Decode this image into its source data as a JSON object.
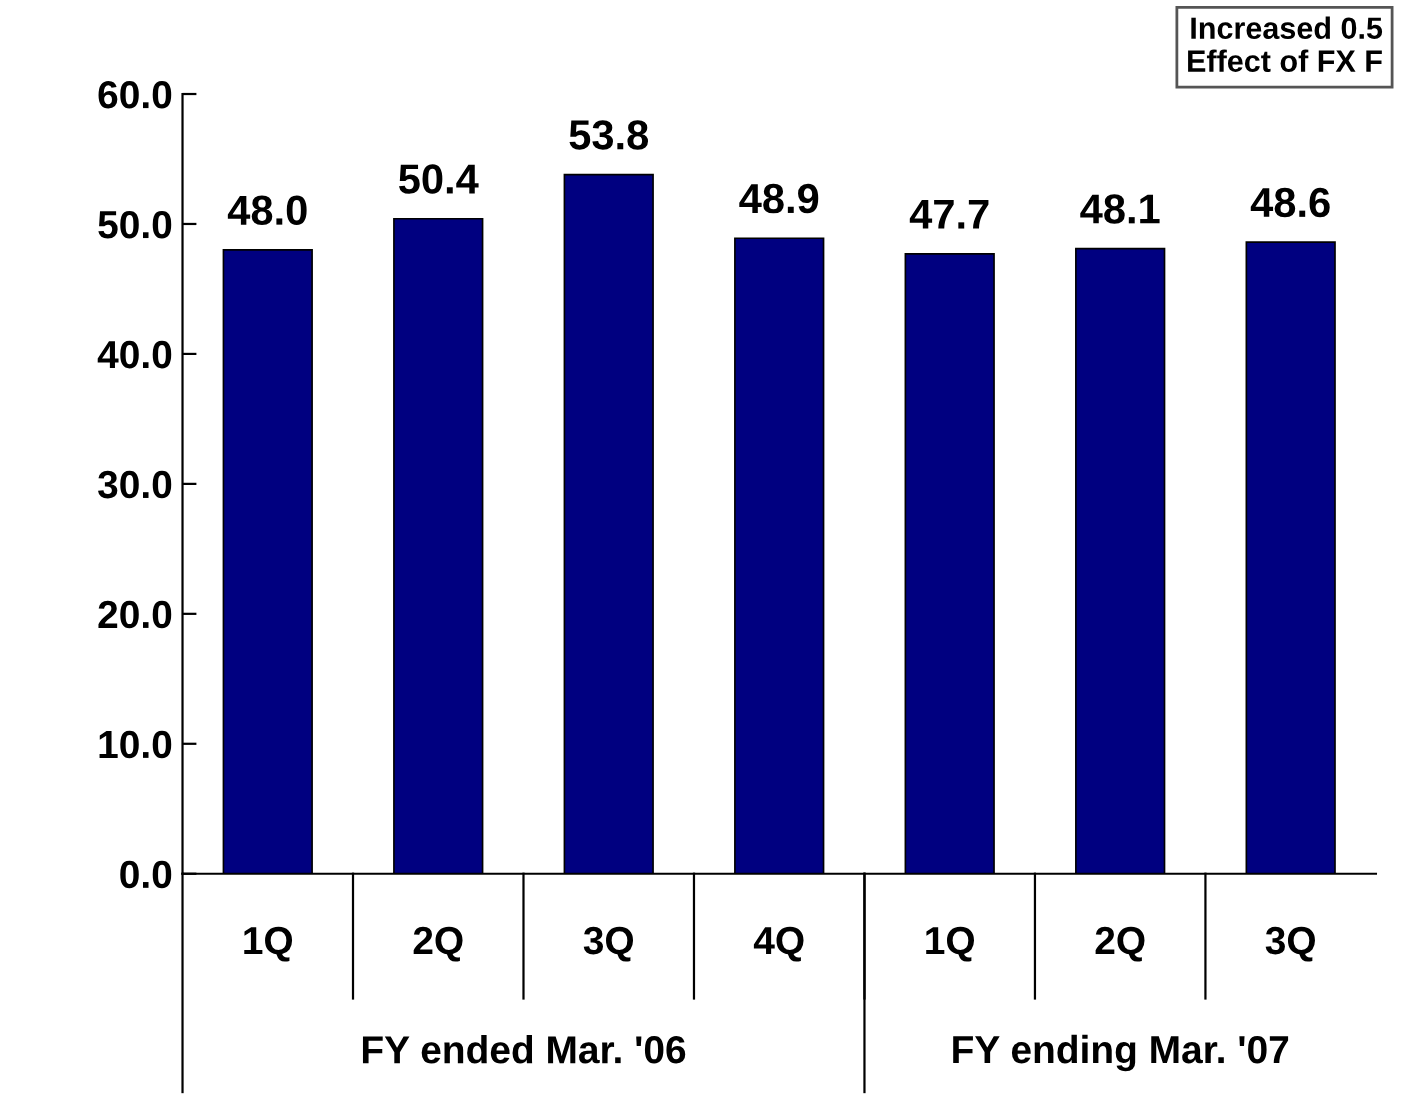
{
  "chart_data": {
    "type": "bar",
    "categories": [
      "1Q",
      "2Q",
      "3Q",
      "4Q",
      "1Q",
      "2Q",
      "3Q"
    ],
    "values": [
      48.0,
      50.4,
      53.8,
      48.9,
      47.7,
      48.1,
      48.6
    ],
    "color": "#000080",
    "ylim": [
      0,
      60
    ],
    "yticks": [
      {
        "value": 0,
        "label": "0.0"
      },
      {
        "value": 10,
        "label": "10.0"
      },
      {
        "value": 20,
        "label": "20.0"
      },
      {
        "value": 30,
        "label": "30.0"
      },
      {
        "value": 40,
        "label": "40.0"
      },
      {
        "value": 50,
        "label": "50.0"
      },
      {
        "value": 60,
        "label": "60.0"
      }
    ],
    "value_labels": [
      "48.0",
      "50.4",
      "53.8",
      "48.9",
      "47.7",
      "48.1",
      "48.6"
    ],
    "grid": false,
    "annotations": [
      "FY ended Mar. '06",
      "FY ending Mar. '07",
      "Increased 0.5",
      "Effect of FX F"
    ]
  }
}
